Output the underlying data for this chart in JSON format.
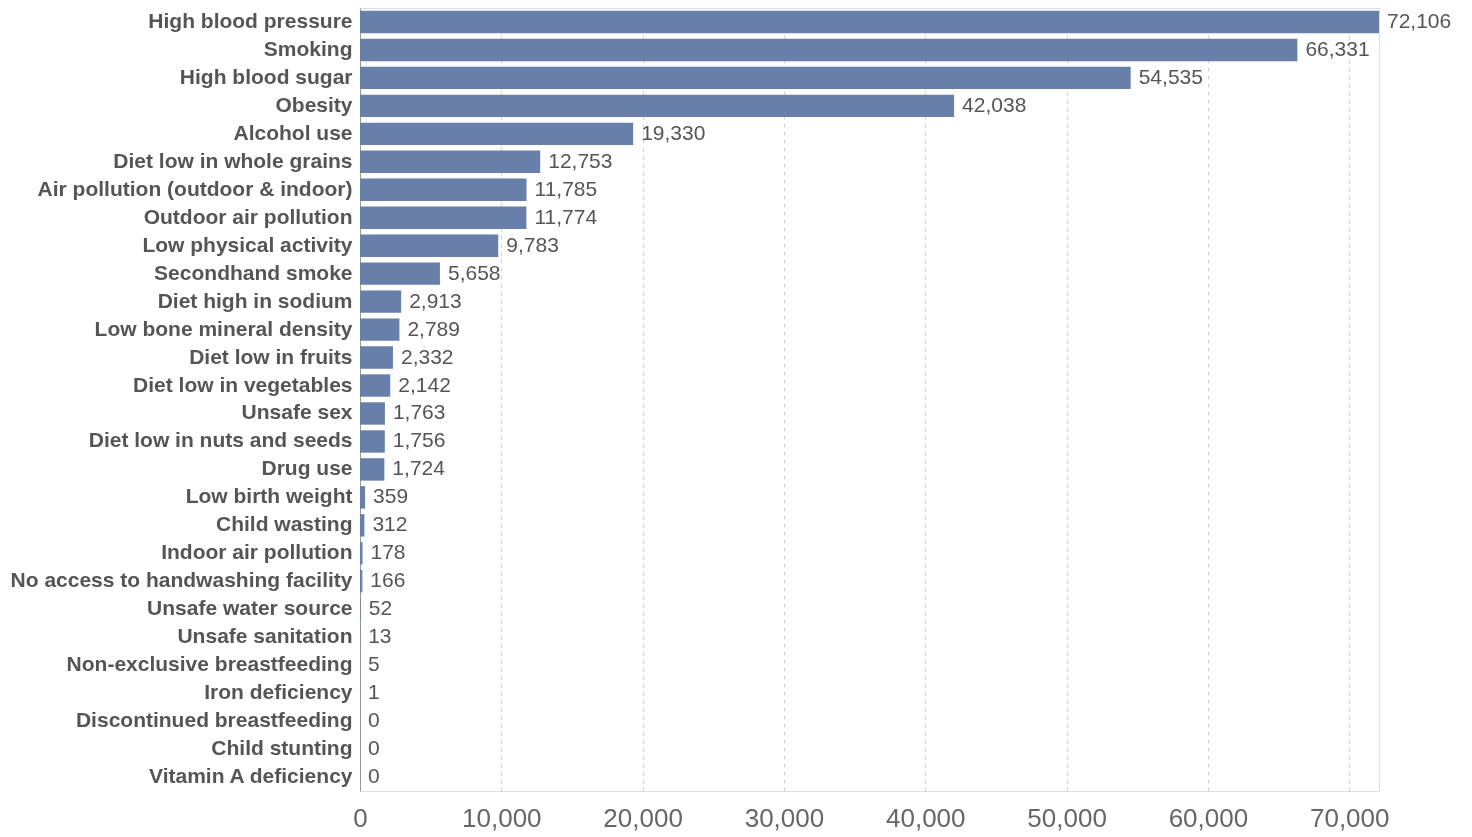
{
  "chart_data": {
    "type": "bar",
    "orientation": "horizontal",
    "categories": [
      "High blood pressure",
      "Smoking",
      "High blood sugar",
      "Obesity",
      "Alcohol use",
      "Diet low in whole grains",
      "Air pollution (outdoor & indoor)",
      "Outdoor air pollution",
      "Low physical activity",
      "Secondhand smoke",
      "Diet high in sodium",
      "Low bone mineral density",
      "Diet low in fruits",
      "Diet low in vegetables",
      "Unsafe sex",
      "Diet low in nuts and seeds",
      "Drug use",
      "Low birth weight",
      "Child wasting",
      "Indoor air pollution",
      "No access to handwashing facility",
      "Unsafe water source",
      "Unsafe sanitation",
      "Non-exclusive breastfeeding",
      "Iron deficiency",
      "Discontinued breastfeeding",
      "Child stunting",
      "Vitamin A deficiency"
    ],
    "values": [
      72106,
      66331,
      54535,
      42038,
      19330,
      12753,
      11785,
      11774,
      9783,
      5658,
      2913,
      2789,
      2332,
      2142,
      1763,
      1756,
      1724,
      359,
      312,
      178,
      166,
      52,
      13,
      5,
      1,
      0,
      0,
      0
    ],
    "color": "#677fa9",
    "xlim": [
      0,
      72106
    ],
    "xticks": [
      0,
      {
        "value": 10000,
        "label": "10,000"
      },
      {
        "value": 20000,
        "label": "20,000"
      },
      {
        "value": 30000,
        "label": "30,000"
      },
      {
        "value": 40000,
        "label": "40,000"
      },
      {
        "value": 50000,
        "label": "50,000"
      },
      {
        "value": 60000,
        "label": "60,000"
      },
      {
        "value": 70000,
        "label": "70,000"
      }
    ],
    "value_labels": [
      "72,106",
      "66,331",
      "54,535",
      "42,038",
      "19,330",
      "12,753",
      "11,785",
      "11,774",
      "9,783",
      "5,658",
      "2,913",
      "2,789",
      "2,332",
      "2,142",
      "1,763",
      "1,756",
      "1,724",
      "359",
      "312",
      "178",
      "166",
      "52",
      "13",
      "5",
      "1",
      "0",
      "0",
      "0"
    ],
    "grid": "x"
  }
}
